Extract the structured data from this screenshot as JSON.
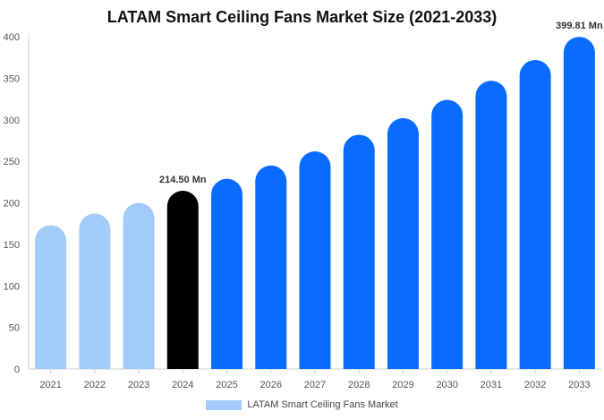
{
  "chart_data": {
    "type": "bar",
    "title": "LATAM Smart Ceiling Fans Market Size (2021-2033)",
    "xlabel": "",
    "ylabel": "",
    "ylim": [
      0,
      400
    ],
    "y_ticks": [
      0,
      50,
      100,
      150,
      200,
      250,
      300,
      350,
      400
    ],
    "grid": false,
    "legend_placement": "bottom",
    "categories": [
      "2021",
      "2022",
      "2023",
      "2024",
      "2025",
      "2026",
      "2027",
      "2028",
      "2029",
      "2030",
      "2031",
      "2032",
      "2033"
    ],
    "series": [
      {
        "name": "LATAM Smart Ceiling Fans Market",
        "values": [
          173,
          187,
          200,
          214.5,
          229,
          245,
          262,
          282,
          302,
          324,
          347,
          372,
          399.81
        ]
      }
    ],
    "bar_colors": {
      "historical": "#a3cbfa",
      "base_year": "#000000",
      "forecast": "#0a6cff"
    },
    "base_year_index": 3,
    "data_labels": [
      {
        "index": 3,
        "text": "214.50 Mn"
      },
      {
        "index": 12,
        "text": "399.81 Mn"
      }
    ],
    "legend_color": "#a3cbfa"
  }
}
